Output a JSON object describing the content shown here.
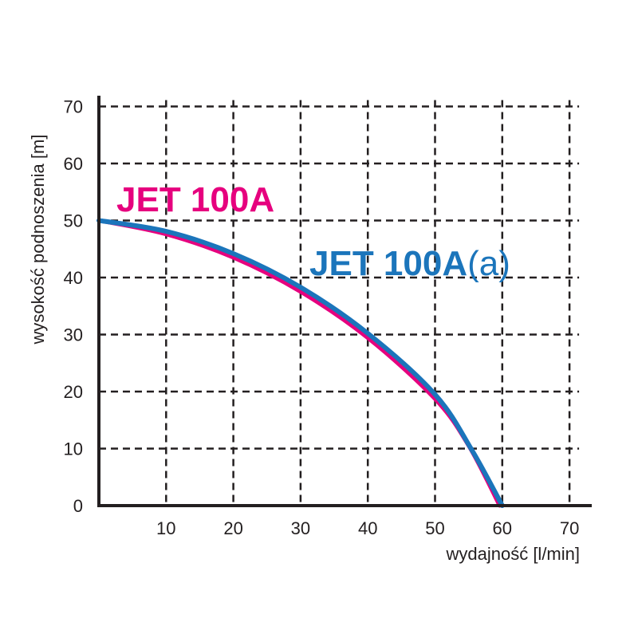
{
  "chart_data": {
    "type": "line",
    "xlabel": "wydajność [l/min]",
    "ylabel": "wysokość podnoszenia [m]",
    "xlim": [
      0,
      70
    ],
    "ylim": [
      0,
      70
    ],
    "x_ticks": [
      "10",
      "20",
      "30",
      "40",
      "50",
      "60",
      "70"
    ],
    "y_ticks": [
      "0",
      "10",
      "20",
      "30",
      "40",
      "50",
      "60",
      "70"
    ],
    "grid": true,
    "grid_style": "dashed",
    "series": [
      {
        "name": "JET 100A",
        "color": "#e6007e",
        "x": [
          0,
          10,
          20,
          30,
          40,
          50,
          55,
          59.6
        ],
        "y": [
          50,
          47.6,
          43.5,
          37.5,
          29.4,
          18.7,
          10.5,
          0
        ]
      },
      {
        "name": "JET 100A(a)",
        "color": "#1b75bb",
        "x": [
          0,
          10,
          20,
          30,
          40,
          50,
          55.5,
          60
        ],
        "y": [
          50,
          48.1,
          44.2,
          38.3,
          30.2,
          19.5,
          9.7,
          0
        ]
      }
    ],
    "labels": [
      {
        "text": "JET 100A",
        "color": "#e6007e"
      },
      {
        "text": "JET 100A",
        "suffix": "(a)",
        "color": "#1b75bb"
      }
    ]
  }
}
